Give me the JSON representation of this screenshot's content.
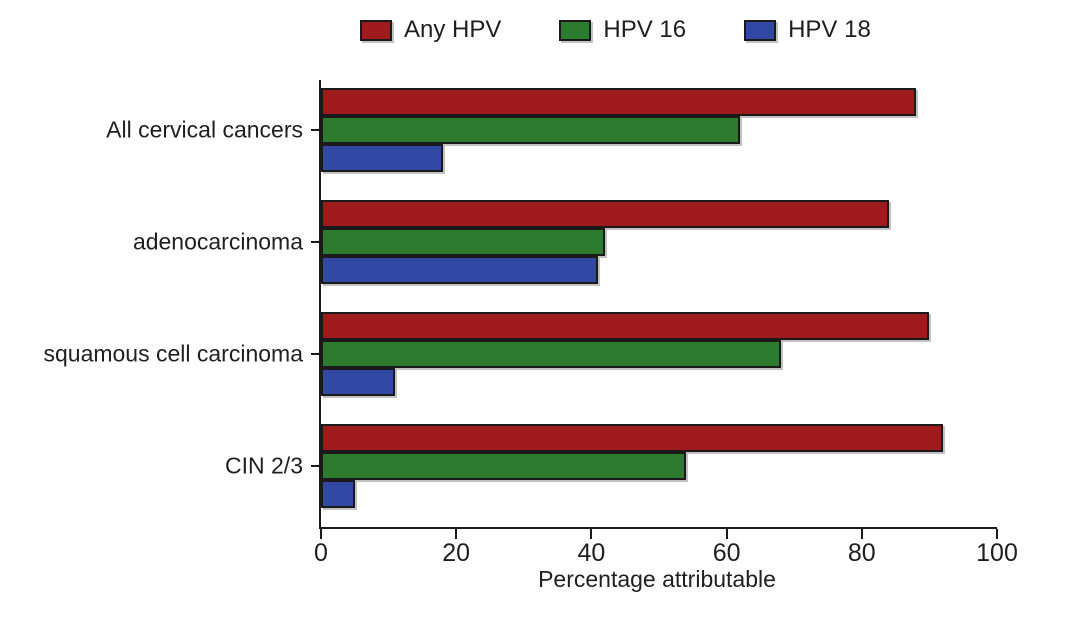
{
  "chart_data": {
    "type": "bar",
    "orientation": "horizontal",
    "title": "",
    "xlabel": "Percentage attributable",
    "ylabel": "",
    "xlim": [
      0,
      100
    ],
    "xticks": [
      0,
      20,
      40,
      60,
      80,
      100
    ],
    "grid": false,
    "legend_position": "top",
    "categories": [
      "All cervical cancers",
      "adenocarcinoma",
      "squamous cell carcinoma",
      "CIN 2/3"
    ],
    "series": [
      {
        "name": "Any HPV",
        "color": "#9E1A1D",
        "values": [
          88,
          84,
          90,
          92
        ]
      },
      {
        "name": "HPV 16",
        "color": "#2C7B2F",
        "values": [
          62,
          42,
          68,
          54
        ]
      },
      {
        "name": "HPV 18",
        "color": "#3149A4",
        "values": [
          18,
          41,
          11,
          5
        ]
      }
    ]
  },
  "colors": {
    "axis": "#1a1a1a",
    "text": "#1f1f1f",
    "bar_border": "#1a1a1a",
    "background": "#ffffff"
  }
}
